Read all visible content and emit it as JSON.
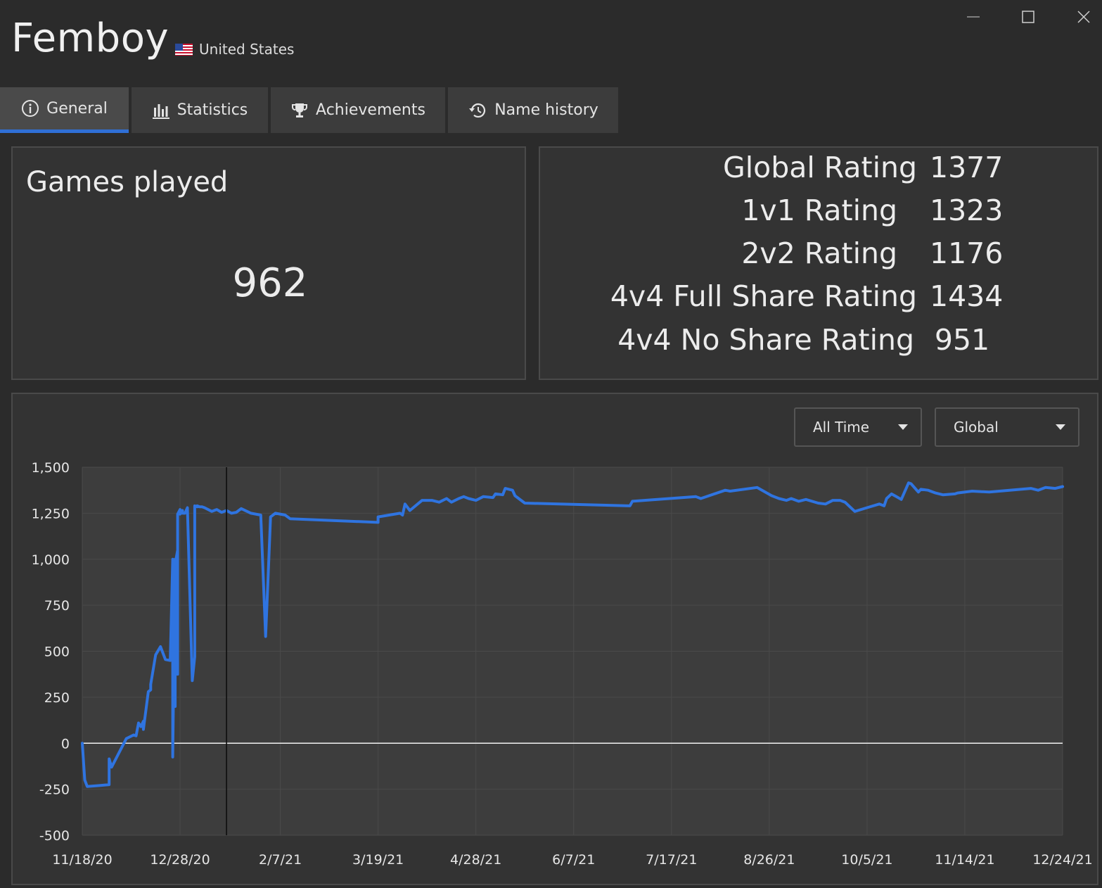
{
  "player": {
    "name": "Femboy",
    "country": "United States",
    "flag_icon": "us-flag-icon"
  },
  "window": {
    "minimize_icon": "minimize-icon",
    "maximize_icon": "maximize-icon",
    "close_icon": "close-icon"
  },
  "tabs": [
    {
      "label": "General",
      "icon": "info-icon",
      "active": true
    },
    {
      "label": "Statistics",
      "icon": "bar-chart-icon",
      "active": false
    },
    {
      "label": "Achievements",
      "icon": "trophy-icon",
      "active": false
    },
    {
      "label": "Name history",
      "icon": "history-icon",
      "active": false
    }
  ],
  "games": {
    "title": "Games played",
    "value": "962"
  },
  "ratings": [
    {
      "label": "Global Rating",
      "value": "1377"
    },
    {
      "label": "1v1 Rating",
      "value": "1323"
    },
    {
      "label": "2v2 Rating",
      "value": "1176"
    },
    {
      "label": "4v4 Full Share Rating",
      "value": "1434"
    },
    {
      "label": "4v4 No Share Rating",
      "value": "951"
    }
  ],
  "filters": {
    "time_range": "All Time",
    "mode": "Global"
  },
  "colors": {
    "accent": "#2f6fd6",
    "line": "#2f74e0",
    "background": "#2b2b2b",
    "panel": "#333333",
    "plot": "#3d3d3d"
  },
  "chart_data": {
    "type": "line",
    "title": "",
    "xlabel": "",
    "ylabel": "",
    "ylim": [
      -500,
      1500
    ],
    "xlim": [
      "11/18/20",
      "12/24/21"
    ],
    "grid": true,
    "legend": "none",
    "yticks": [
      -500,
      -250,
      0,
      250,
      500,
      750,
      1000,
      1250,
      1500
    ],
    "ytick_labels": [
      "-500",
      "-250",
      "0",
      "250",
      "500",
      "750",
      "1,000",
      "1,250",
      "1,500"
    ],
    "xticks": [
      "11/18/20",
      "12/28/20",
      "2/7/21",
      "3/19/21",
      "4/28/21",
      "6/7/21",
      "7/17/21",
      "8/26/21",
      "10/5/21",
      "11/14/21",
      "12/24/21"
    ],
    "zero_line": 0,
    "cursor_line_x": "1/16/21",
    "series": [
      {
        "x": [
          "11/18/20",
          "11/19/20",
          "11/20/20",
          "11/25/20",
          "11/29/20",
          "11/29/20",
          "11/30/20",
          "12/6/20",
          "12/9/20",
          "12/10/20",
          "12/11/20",
          "12/12/20",
          "12/13/20",
          "12/13/20",
          "12/15/20",
          "12/16/20",
          "12/16/20",
          "12/18/20",
          "12/20/20",
          "12/22/20",
          "12/24/20",
          "12/25/20",
          "12/25/20",
          "12/26/20",
          "12/26/20",
          "12/26/20",
          "12/27/20",
          "12/27/20",
          "12/27/20",
          "12/28/20",
          "12/28/20",
          "12/29/20",
          "12/29/20",
          "12/30/20",
          "12/31/20",
          "1/2/21",
          "1/3/21",
          "1/3/21",
          "1/4/21",
          "1/4/21",
          "1/5/21",
          "1/6/21",
          "1/7/21",
          "1/10/21",
          "1/12/21",
          "1/14/21",
          "1/16/21",
          "1/18/21",
          "1/20/21",
          "1/22/21",
          "1/26/21",
          "1/30/21",
          "2/1/21",
          "2/2/21",
          "2/3/21",
          "2/5/21",
          "2/9/21",
          "2/11/21",
          "3/19/21",
          "3/19/21",
          "3/28/21",
          "3/29/21",
          "3/30/21",
          "4/1/21",
          "4/6/21",
          "4/10/21",
          "4/13/21",
          "4/16/21",
          "4/18/21",
          "4/21/21",
          "4/23/21",
          "4/25/21",
          "4/28/21",
          "5/1/21",
          "5/5/21",
          "5/6/21",
          "5/9/21",
          "5/10/21",
          "5/13/21",
          "5/14/21",
          "5/18/21",
          "6/30/21",
          "7/1/21",
          "7/27/21",
          "7/29/21",
          "8/8/21",
          "8/10/21",
          "8/21/21",
          "8/27/21",
          "8/30/21",
          "9/2/21",
          "9/4/21",
          "9/7/21",
          "9/10/21",
          "9/15/21",
          "9/18/21",
          "9/21/21",
          "9/24/21",
          "9/26/21",
          "9/30/21",
          "10/5/21",
          "10/10/21",
          "10/12/21",
          "10/13/21",
          "10/15/21",
          "10/17/21",
          "10/19/21",
          "10/22/21",
          "10/23/21",
          "10/26/21",
          "10/27/21",
          "10/30/21",
          "11/2/21",
          "11/5/21",
          "11/10/21",
          "11/11/21",
          "11/17/21",
          "11/24/21",
          "12/11/21",
          "12/14/21",
          "12/17/21",
          "12/21/21",
          "12/24/21"
        ],
        "values": [
          0,
          -200,
          -235,
          -230,
          -225,
          -85,
          -130,
          25,
          45,
          40,
          110,
          90,
          120,
          75,
          280,
          290,
          320,
          480,
          525,
          455,
          450,
          1000,
          -75,
          1000,
          200,
          975,
          1050,
          375,
          1245,
          1270,
          1245,
          1265,
          1250,
          1250,
          1280,
          340,
          470,
          1290,
          1285,
          1290,
          1285,
          1285,
          1280,
          1260,
          1270,
          1255,
          1265,
          1250,
          1255,
          1275,
          1250,
          1240,
          580,
          900,
          1230,
          1250,
          1240,
          1220,
          1200,
          1230,
          1250,
          1240,
          1300,
          1265,
          1320,
          1320,
          1310,
          1330,
          1310,
          1330,
          1340,
          1330,
          1320,
          1340,
          1335,
          1355,
          1350,
          1385,
          1375,
          1345,
          1305,
          1290,
          1315,
          1340,
          1330,
          1375,
          1370,
          1390,
          1345,
          1330,
          1320,
          1330,
          1315,
          1325,
          1305,
          1300,
          1320,
          1320,
          1310,
          1260,
          1280,
          1300,
          1290,
          1330,
          1355,
          1340,
          1325,
          1415,
          1410,
          1365,
          1380,
          1375,
          1360,
          1350,
          1355,
          1360,
          1370,
          1365,
          1385,
          1375,
          1390,
          1385,
          1395
        ]
      }
    ]
  }
}
